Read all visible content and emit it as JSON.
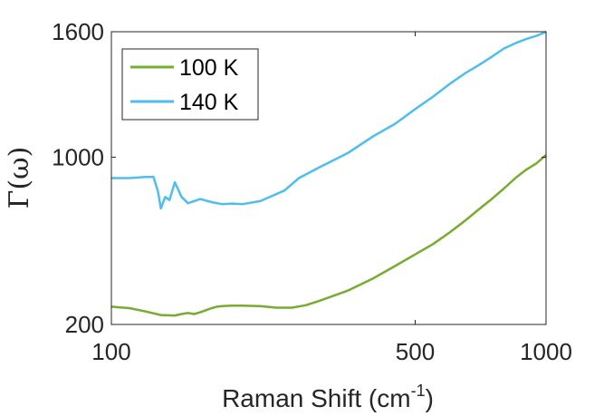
{
  "chart_data": {
    "type": "line",
    "title": "",
    "xlabel": "Raman Shift (cm",
    "xlabel_sup": "-1",
    "xlabel_tail": ")",
    "ylabel": "Γ(ω)",
    "xlim": [
      100,
      1000
    ],
    "ylim": [
      200,
      1600
    ],
    "xticks": [
      100,
      500,
      1000
    ],
    "yticks": [
      200,
      1000,
      1600
    ],
    "grid": false,
    "legend_position": "top-left",
    "series": [
      {
        "name": "100 K",
        "color": "#77AC30",
        "x": [
          100,
          110,
          120,
          130,
          140,
          145,
          150,
          155,
          160,
          165,
          170,
          175,
          180,
          190,
          200,
          220,
          240,
          260,
          280,
          300,
          350,
          400,
          450,
          500,
          550,
          600,
          650,
          700,
          750,
          800,
          850,
          900,
          950,
          1000
        ],
        "y": [
          285,
          278,
          262,
          245,
          243,
          250,
          255,
          250,
          258,
          268,
          278,
          285,
          288,
          290,
          290,
          288,
          280,
          280,
          292,
          312,
          362,
          420,
          480,
          535,
          585,
          640,
          695,
          750,
          800,
          850,
          900,
          940,
          970,
          1010
        ]
      },
      {
        "name": "140 K",
        "color": "#4DBEEE",
        "x": [
          100,
          110,
          120,
          125,
          128,
          130,
          133,
          136,
          140,
          145,
          150,
          155,
          160,
          170,
          180,
          190,
          200,
          220,
          250,
          270,
          300,
          350,
          400,
          450,
          500,
          550,
          600,
          650,
          700,
          750,
          800,
          850,
          900,
          950,
          1000
        ],
        "y": [
          900,
          900,
          905,
          905,
          835,
          755,
          810,
          795,
          880,
          810,
          780,
          790,
          800,
          785,
          775,
          778,
          775,
          790,
          840,
          900,
          950,
          1020,
          1100,
          1160,
          1230,
          1290,
          1350,
          1400,
          1440,
          1480,
          1520,
          1545,
          1565,
          1580,
          1600
        ]
      }
    ]
  }
}
